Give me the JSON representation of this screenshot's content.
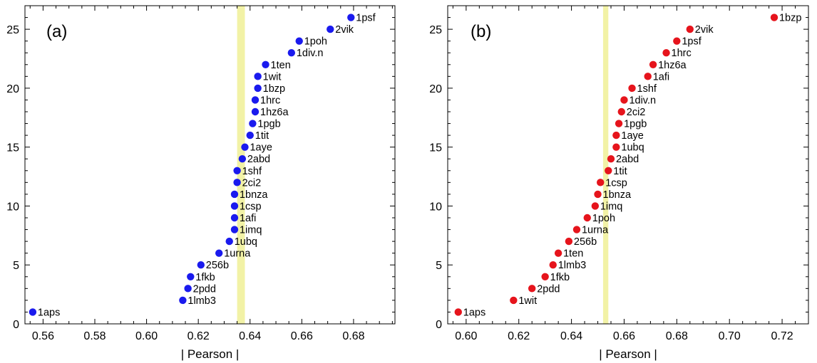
{
  "chart_data": [
    {
      "type": "scatter",
      "panel_label": "(a)",
      "xlabel": "| Pearson |",
      "ylabel": "",
      "xlim": [
        0.553,
        0.696
      ],
      "ylim": [
        0,
        27
      ],
      "xticks": [
        0.56,
        0.58,
        0.6,
        0.62,
        0.64,
        0.66,
        0.68
      ],
      "yticks": [
        0,
        5,
        10,
        15,
        20,
        25
      ],
      "band": [
        0.635,
        0.638
      ],
      "band_color": "#f2f2a6",
      "marker_color": "#1a1aee",
      "grid": false,
      "points": [
        {
          "x": 0.556,
          "y": 1,
          "label": "1aps"
        },
        {
          "x": 0.614,
          "y": 2,
          "label": "1lmb3"
        },
        {
          "x": 0.616,
          "y": 3,
          "label": "2pdd"
        },
        {
          "x": 0.617,
          "y": 4,
          "label": "1fkb"
        },
        {
          "x": 0.621,
          "y": 5,
          "label": "256b"
        },
        {
          "x": 0.628,
          "y": 6,
          "label": "1urna"
        },
        {
          "x": 0.632,
          "y": 7,
          "label": "1ubq"
        },
        {
          "x": 0.634,
          "y": 8,
          "label": "1imq"
        },
        {
          "x": 0.634,
          "y": 9,
          "label": "1afi"
        },
        {
          "x": 0.634,
          "y": 10,
          "label": "1csp"
        },
        {
          "x": 0.634,
          "y": 11,
          "label": "1bnza"
        },
        {
          "x": 0.635,
          "y": 12,
          "label": "2ci2"
        },
        {
          "x": 0.635,
          "y": 13,
          "label": "1shf"
        },
        {
          "x": 0.637,
          "y": 14,
          "label": "2abd"
        },
        {
          "x": 0.638,
          "y": 15,
          "label": "1aye"
        },
        {
          "x": 0.64,
          "y": 16,
          "label": "1tit"
        },
        {
          "x": 0.641,
          "y": 17,
          "label": "1pgb"
        },
        {
          "x": 0.642,
          "y": 18,
          "label": "1hz6a"
        },
        {
          "x": 0.642,
          "y": 19,
          "label": "1hrc"
        },
        {
          "x": 0.643,
          "y": 20,
          "label": "1bzp"
        },
        {
          "x": 0.643,
          "y": 21,
          "label": "1wit"
        },
        {
          "x": 0.646,
          "y": 22,
          "label": "1ten"
        },
        {
          "x": 0.656,
          "y": 23,
          "label": "1div.n"
        },
        {
          "x": 0.659,
          "y": 24,
          "label": "1poh"
        },
        {
          "x": 0.671,
          "y": 25,
          "label": "2vik"
        },
        {
          "x": 0.679,
          "y": 26,
          "label": "1psf"
        }
      ]
    },
    {
      "type": "scatter",
      "panel_label": "(b)",
      "xlabel": "| Pearson |",
      "ylabel": "",
      "xlim": [
        0.593,
        0.73
      ],
      "ylim": [
        0,
        27
      ],
      "xticks": [
        0.6,
        0.62,
        0.64,
        0.66,
        0.68,
        0.7,
        0.72
      ],
      "yticks": [
        0,
        5,
        10,
        15,
        20,
        25
      ],
      "band": [
        0.652,
        0.654
      ],
      "band_color": "#f2f2a6",
      "marker_color": "#e6141c",
      "grid": false,
      "points": [
        {
          "x": 0.597,
          "y": 1,
          "label": "1aps"
        },
        {
          "x": 0.618,
          "y": 2,
          "label": "1wit"
        },
        {
          "x": 0.625,
          "y": 3,
          "label": "2pdd"
        },
        {
          "x": 0.63,
          "y": 4,
          "label": "1fkb"
        },
        {
          "x": 0.633,
          "y": 5,
          "label": "1lmb3"
        },
        {
          "x": 0.635,
          "y": 6,
          "label": "1ten"
        },
        {
          "x": 0.639,
          "y": 7,
          "label": "256b"
        },
        {
          "x": 0.642,
          "y": 8,
          "label": "1urna"
        },
        {
          "x": 0.646,
          "y": 9,
          "label": "1poh"
        },
        {
          "x": 0.649,
          "y": 10,
          "label": "1imq"
        },
        {
          "x": 0.65,
          "y": 11,
          "label": "1bnza"
        },
        {
          "x": 0.651,
          "y": 12,
          "label": "1csp"
        },
        {
          "x": 0.654,
          "y": 13,
          "label": "1tit"
        },
        {
          "x": 0.655,
          "y": 14,
          "label": "2abd"
        },
        {
          "x": 0.657,
          "y": 15,
          "label": "1ubq"
        },
        {
          "x": 0.657,
          "y": 16,
          "label": "1aye"
        },
        {
          "x": 0.658,
          "y": 17,
          "label": "1pgb"
        },
        {
          "x": 0.659,
          "y": 18,
          "label": "2ci2"
        },
        {
          "x": 0.66,
          "y": 19,
          "label": "1div.n"
        },
        {
          "x": 0.663,
          "y": 20,
          "label": "1shf"
        },
        {
          "x": 0.669,
          "y": 21,
          "label": "1afi"
        },
        {
          "x": 0.671,
          "y": 22,
          "label": "1hz6a"
        },
        {
          "x": 0.676,
          "y": 23,
          "label": "1hrc"
        },
        {
          "x": 0.68,
          "y": 24,
          "label": "1psf"
        },
        {
          "x": 0.685,
          "y": 25,
          "label": "2vik"
        },
        {
          "x": 0.717,
          "y": 26,
          "label": "1bzp"
        }
      ]
    }
  ]
}
